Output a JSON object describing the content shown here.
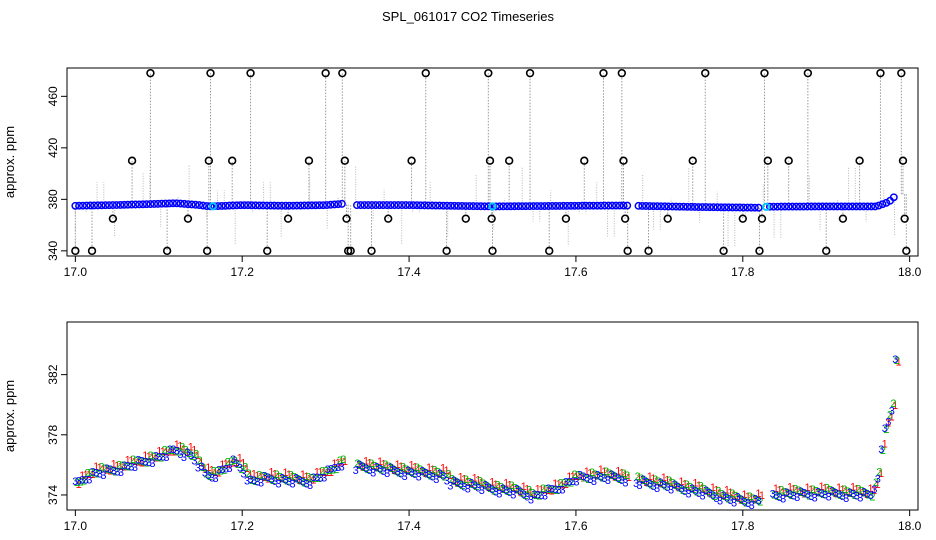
{
  "chart_data": [
    {
      "type": "scatter",
      "title": "SPL_061017  CO2 Timeseries",
      "xlabel": "",
      "ylabel": "approx. ppm",
      "xlim": [
        16.99,
        18.01
      ],
      "ylim": [
        336,
        482
      ],
      "xticks": [
        17.0,
        17.2,
        17.4,
        17.6,
        17.8,
        18.0
      ],
      "xtick_labels": [
        "17.0",
        "17.2",
        "17.4",
        "17.6",
        "17.8",
        "18.0"
      ],
      "yticks": [
        340,
        380,
        420,
        460
      ],
      "ytick_labels": [
        "340",
        "380",
        "420",
        "460"
      ],
      "grid": false,
      "colors": {
        "raw": "#000000",
        "mean": "#0000ff",
        "flagged": "#00c8ff",
        "spikes": "#9a9a9a"
      },
      "baseline": {
        "x": [
          17.0,
          17.05,
          17.1,
          17.12,
          17.15,
          17.16,
          17.2,
          17.25,
          17.3,
          17.32,
          17.33,
          17.4,
          17.5,
          17.6,
          17.66,
          17.67,
          17.75,
          17.82,
          17.83,
          17.9,
          17.96,
          17.975,
          17.985
        ],
        "y": [
          375,
          375.6,
          376.5,
          377,
          375.5,
          374.5,
          375.5,
          375,
          375.5,
          376.5,
          375.5,
          375.5,
          374.5,
          375,
          375.2,
          375,
          374,
          373.5,
          374.3,
          374.5,
          374.5,
          378,
          384
        ]
      },
      "outliers": {
        "x": [
          17.0,
          17.02,
          17.045,
          17.068,
          17.09,
          17.11,
          17.135,
          17.158,
          17.16,
          17.162,
          17.188,
          17.21,
          17.23,
          17.255,
          17.28,
          17.3,
          17.32,
          17.323,
          17.325,
          17.327,
          17.33,
          17.355,
          17.375,
          17.403,
          17.42,
          17.445,
          17.468,
          17.495,
          17.497,
          17.499,
          17.5,
          17.52,
          17.545,
          17.568,
          17.588,
          17.61,
          17.633,
          17.655,
          17.657,
          17.659,
          17.662,
          17.687,
          17.71,
          17.74,
          17.755,
          17.777,
          17.8,
          17.82,
          17.823,
          17.826,
          17.83,
          17.855,
          17.878,
          17.9,
          17.92,
          17.94,
          17.965,
          17.99,
          17.992,
          17.994,
          17.996
        ],
        "y": [
          340,
          340,
          365,
          410,
          478,
          340,
          365,
          340,
          410,
          478,
          410,
          478,
          340,
          365,
          410,
          478,
          478,
          410,
          365,
          340,
          340,
          340,
          365,
          410,
          478,
          340,
          365,
          478,
          410,
          365,
          340,
          410,
          478,
          340,
          365,
          410,
          478,
          478,
          410,
          365,
          340,
          340,
          365,
          410,
          478,
          340,
          365,
          340,
          365,
          478,
          410,
          410,
          478,
          340,
          365,
          410,
          478,
          478,
          410,
          365,
          340
        ]
      }
    },
    {
      "type": "line",
      "title": "",
      "xlabel": "",
      "ylabel": "approx. ppm",
      "xlim": [
        16.99,
        18.01
      ],
      "ylim": [
        373,
        385.5
      ],
      "xticks": [
        17.0,
        17.2,
        17.4,
        17.6,
        17.8,
        18.0
      ],
      "xtick_labels": [
        "17.0",
        "17.2",
        "17.4",
        "17.6",
        "17.8",
        "18.0"
      ],
      "yticks": [
        374,
        378,
        382
      ],
      "ytick_labels": [
        "374",
        "378",
        "382"
      ],
      "grid": false,
      "series": [
        {
          "marker": "1",
          "color": "#ff0000",
          "x_offset": 0.004,
          "y_offset": 0.18
        },
        {
          "marker": "2",
          "color": "#00b400",
          "x_offset": 0.002,
          "y_offset": 0.05
        },
        {
          "marker": "3",
          "color": "#0000ff",
          "x_offset": 0.0,
          "y_offset": -0.12
        }
      ],
      "trend": {
        "x": [
          17.0,
          17.01,
          17.02,
          17.05,
          17.08,
          17.1,
          17.12,
          17.14,
          17.155,
          17.165,
          17.18,
          17.19,
          17.2,
          17.21,
          17.23,
          17.25,
          17.28,
          17.3,
          17.32,
          17.33,
          17.35,
          17.4,
          17.44,
          17.45,
          17.47,
          17.5,
          17.53,
          17.55,
          17.58,
          17.6,
          17.62,
          17.64,
          17.66,
          17.67,
          17.7,
          17.75,
          17.78,
          17.8,
          17.82,
          17.825,
          17.83,
          17.9,
          17.955,
          17.962,
          17.97,
          17.978,
          17.985
        ],
        "y": [
          374.8,
          375.2,
          375.5,
          375.8,
          376.3,
          376.6,
          377.1,
          376.7,
          375.5,
          375.4,
          375.9,
          376.3,
          375.8,
          375.0,
          375.2,
          375.1,
          375.0,
          375.5,
          376.3,
          376.0,
          375.9,
          375.6,
          375.4,
          374.9,
          374.8,
          374.5,
          374.3,
          374.0,
          374.6,
          375.2,
          375.3,
          375.3,
          375.2,
          375.0,
          374.8,
          374.3,
          373.9,
          373.7,
          373.7,
          373.7,
          374.1,
          374.2,
          374.1,
          375.5,
          378.5,
          379.5,
          384.5
        ]
      }
    }
  ]
}
